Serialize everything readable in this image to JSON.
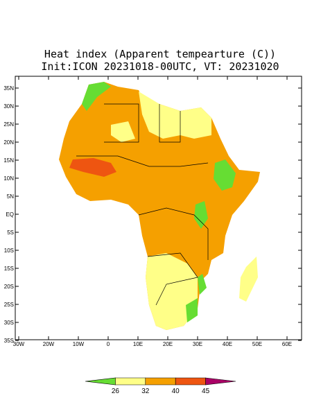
{
  "title": [
    "Heat index (Apparent tempearture (C))",
    "Init:ICON 20231018-00UTC, VT: 20231020"
  ],
  "map": {
    "lat_ticks": [
      {
        "value": 35,
        "label": "35N"
      },
      {
        "value": 30,
        "label": "30N"
      },
      {
        "value": 25,
        "label": "25N"
      },
      {
        "value": 20,
        "label": "20N"
      },
      {
        "value": 15,
        "label": "15N"
      },
      {
        "value": 10,
        "label": "10N"
      },
      {
        "value": 5,
        "label": "5N"
      },
      {
        "value": 0,
        "label": "EQ"
      },
      {
        "value": -5,
        "label": "5S"
      },
      {
        "value": -10,
        "label": "10S"
      },
      {
        "value": -15,
        "label": "15S"
      },
      {
        "value": -20,
        "label": "20S"
      },
      {
        "value": -25,
        "label": "25S"
      },
      {
        "value": -30,
        "label": "30S"
      },
      {
        "value": -35,
        "label": "35S"
      }
    ],
    "lon_ticks": [
      {
        "value": -30,
        "label": "30W"
      },
      {
        "value": -20,
        "label": "20W"
      },
      {
        "value": -10,
        "label": "10W"
      },
      0,
      {
        "value": 10,
        "label": "10E"
      },
      {
        "value": 20,
        "label": "20E"
      },
      {
        "value": 30,
        "label": "30E"
      },
      {
        "value": 40,
        "label": "40E"
      },
      {
        "value": 50,
        "label": "50E"
      },
      {
        "value": 60,
        "label": "60E"
      }
    ]
  },
  "colorbar": {
    "levels": [
      26,
      32,
      40,
      45
    ],
    "colors": [
      "#66dd33",
      "#ffff88",
      "#f5a000",
      "#ee5511",
      "#aa0066"
    ]
  }
}
